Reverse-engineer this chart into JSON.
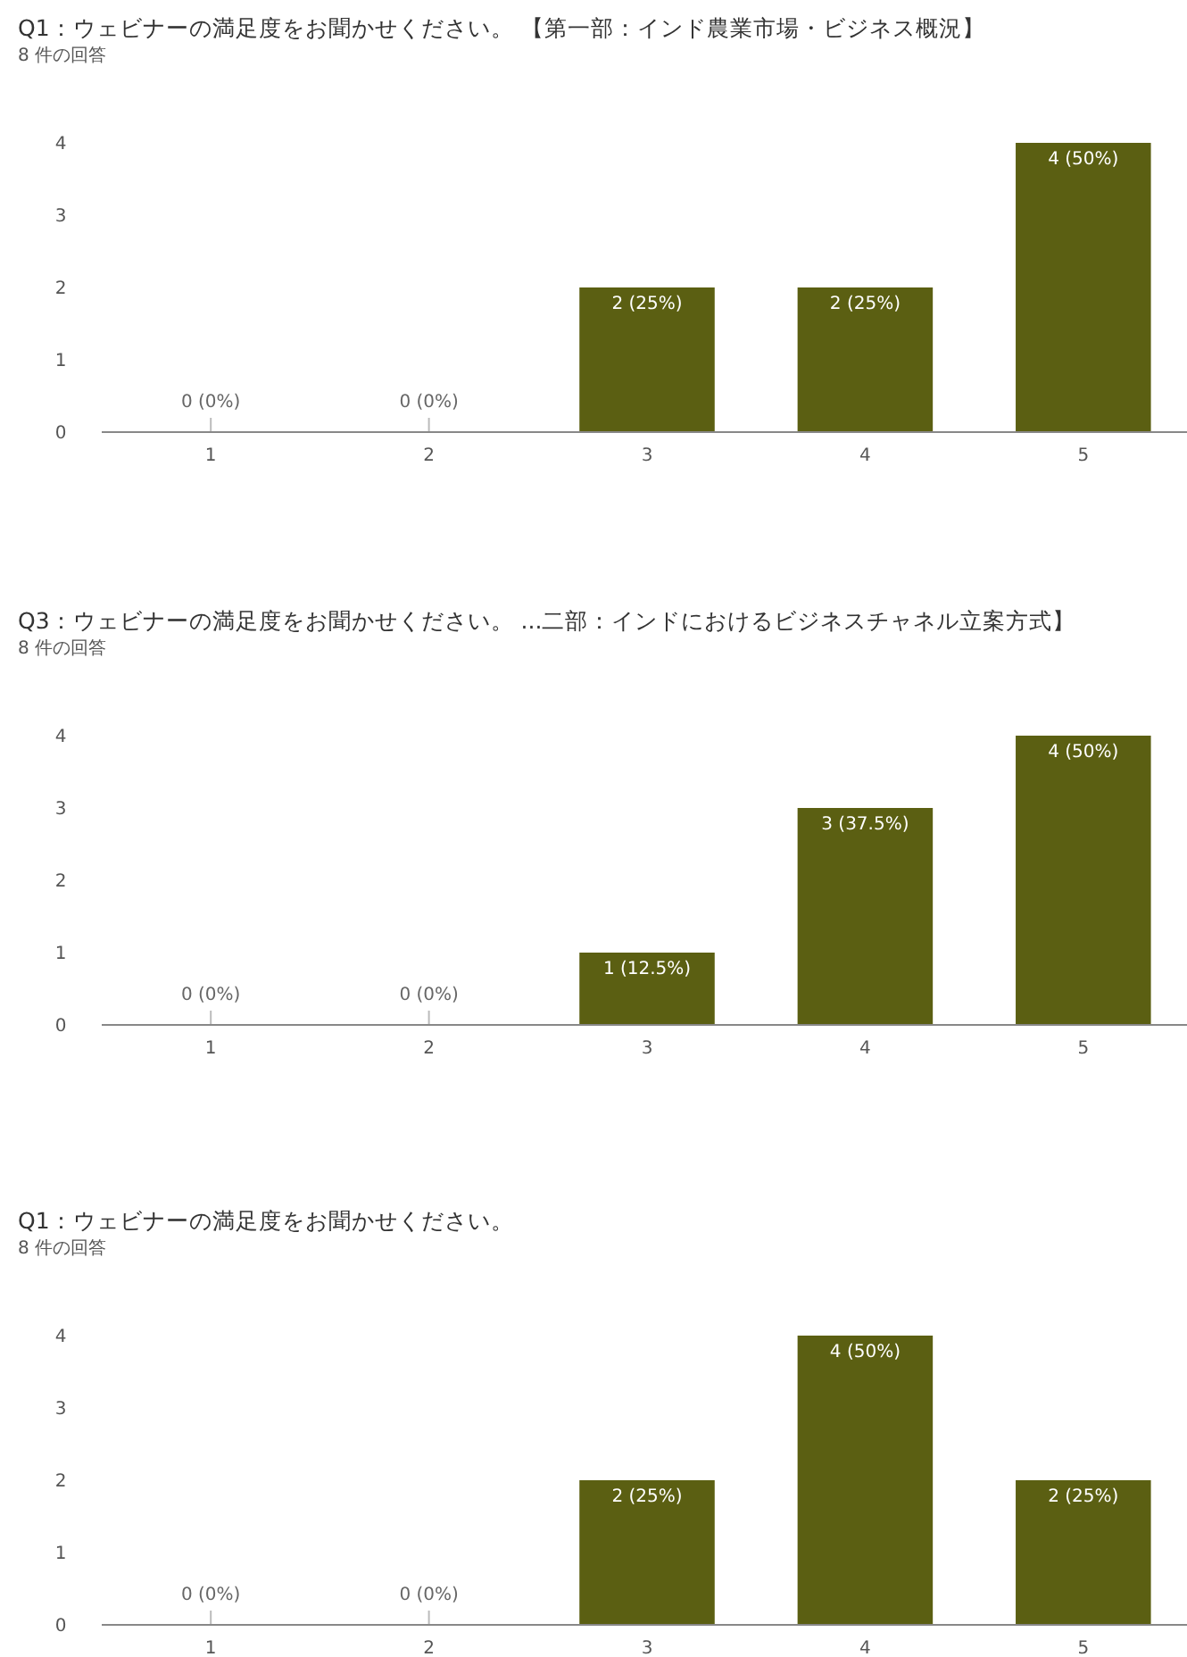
{
  "chart_data": [
    {
      "type": "bar",
      "title": "Q1：ウェビナーの満足度をお聞かせください。 【第一部：インド農業市場・ビジネス概況】",
      "subtitle": "8 件の回答",
      "categories": [
        "1",
        "2",
        "3",
        "4",
        "5"
      ],
      "values": [
        0,
        0,
        2,
        2,
        4
      ],
      "value_labels": [
        "0 (0%)",
        "0 (0%)",
        "2 (25%)",
        "2 (25%)",
        "4 (50%)"
      ],
      "color": "#5b5f12",
      "ylim": [
        0,
        4
      ],
      "yticks": [
        0,
        1,
        2,
        3,
        4
      ]
    },
    {
      "type": "bar",
      "title": "Q3：ウェビナーの満足度をお聞かせください。 ...二部：インドにおけるビジネスチャネル立案方式】",
      "subtitle": "8 件の回答",
      "categories": [
        "1",
        "2",
        "3",
        "4",
        "5"
      ],
      "values": [
        0,
        0,
        1,
        3,
        4
      ],
      "value_labels": [
        "0 (0%)",
        "0 (0%)",
        "1 (12.5%)",
        "3 (37.5%)",
        "4 (50%)"
      ],
      "color": "#5b5f12",
      "ylim": [
        0,
        4
      ],
      "yticks": [
        0,
        1,
        2,
        3,
        4
      ]
    },
    {
      "type": "bar",
      "title": "Q1：ウェビナーの満足度をお聞かせください。",
      "subtitle": "8 件の回答",
      "categories": [
        "1",
        "2",
        "3",
        "4",
        "5"
      ],
      "values": [
        0,
        0,
        2,
        4,
        2
      ],
      "value_labels": [
        "0 (0%)",
        "0 (0%)",
        "2 (25%)",
        "4 (50%)",
        "2 (25%)"
      ],
      "color": "#5b5f12",
      "ylim": [
        0,
        4
      ],
      "yticks": [
        0,
        1,
        2,
        3,
        4
      ]
    }
  ]
}
